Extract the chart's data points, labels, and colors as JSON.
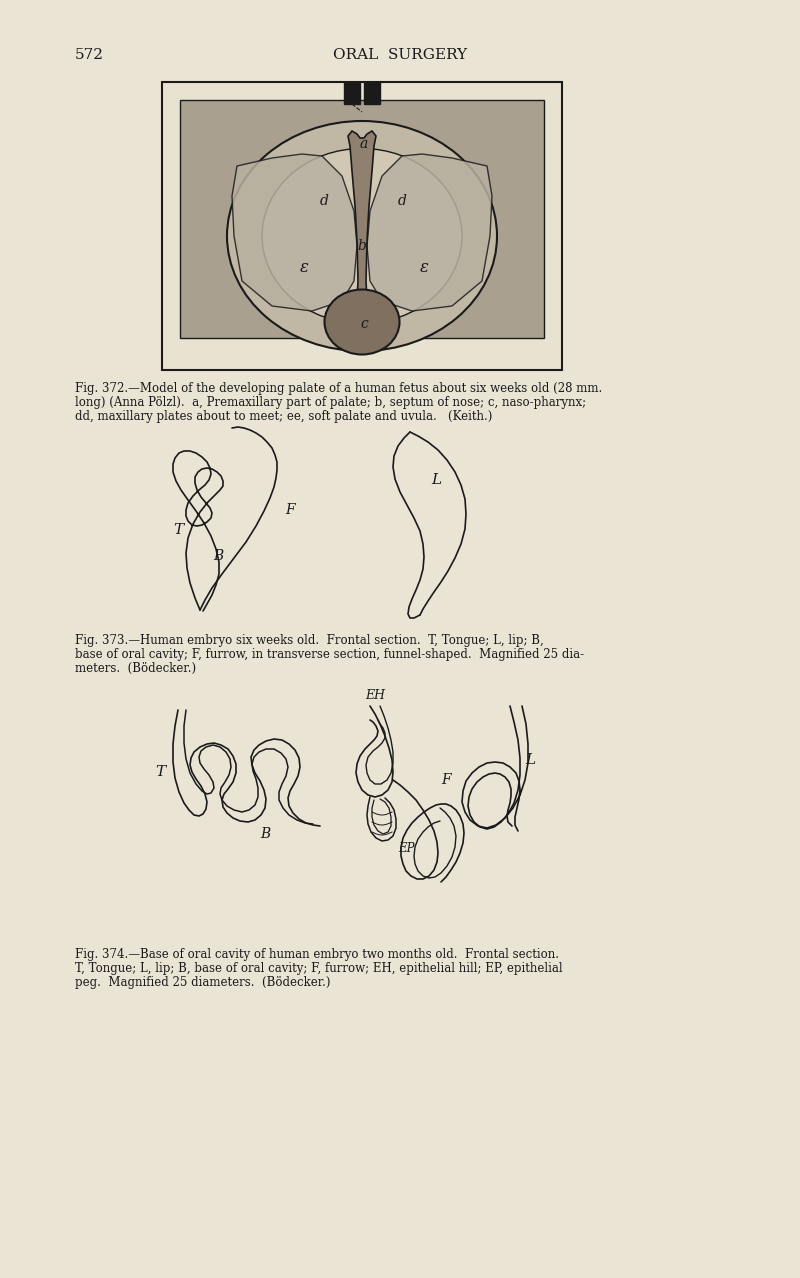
{
  "bg_color": "#EAE4D5",
  "page_number": "572",
  "page_header": "ORAL  SURGERY",
  "line_color": "#1a1a1a",
  "text_color": "#1a1a1a",
  "cap372": [
    "Fig. 372.—Model of the developing palate of a human fetus about six weeks old (28 mm.",
    "long) (Anna Pölzl).  a, Premaxillary part of palate; b, septum of nose; c, naso-pharynx;",
    "dd, maxillary plates about to meet; ee, soft palate and uvula.   (Keith.)"
  ],
  "cap373": [
    "Fig. 373.—Human embryo six weeks old.  Frontal section.  T, Tongue; L, lip; B,",
    "base of oral cavity; F, furrow, in transverse section, funnel-shaped.  Magnified 25 dia-",
    "meters.  (Bödecker.)"
  ],
  "cap374": [
    "Fig. 374.—Base of oral cavity of human embryo two months old.  Frontal section.",
    "T, Tongue; L, lip; B, base of oral cavity; F, furrow; EH, epithelial hill; EP, epithelial",
    "peg.  Magnified 25 diameters.  (Bödecker.)"
  ]
}
